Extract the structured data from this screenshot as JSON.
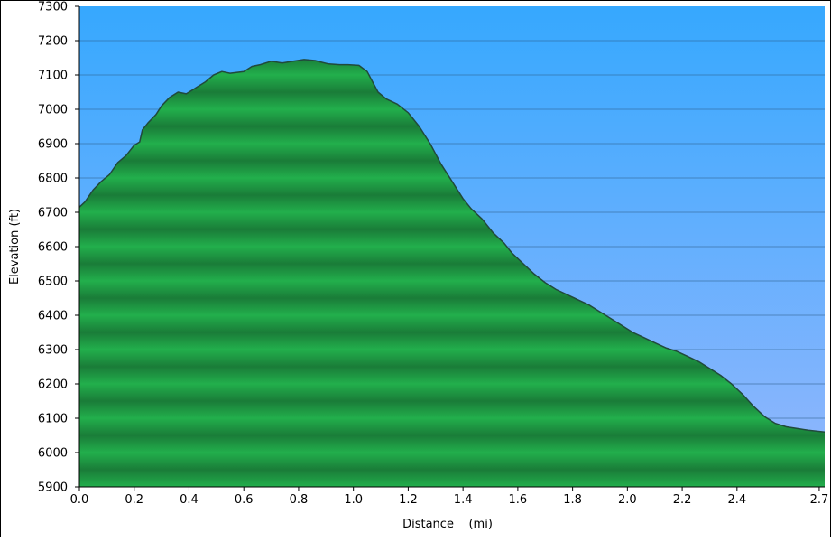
{
  "chart_data": {
    "type": "area",
    "title": "",
    "xlabel": "Distance    (mi)",
    "ylabel": "Elevation (ft)",
    "xlim": [
      0,
      2.72
    ],
    "ylim": [
      5900,
      7300
    ],
    "x_ticks": [
      0.0,
      0.2,
      0.4,
      0.6,
      0.8,
      1.0,
      1.2,
      1.4,
      1.6,
      1.8,
      2.0,
      2.2,
      2.4,
      2.7
    ],
    "x_tick_labels": [
      "0.0",
      "0.2",
      "0.4",
      "0.6",
      "0.8",
      "1.0",
      "1.2",
      "1.4",
      "1.6",
      "1.8",
      "2.0",
      "2.2",
      "2.4",
      "2.7"
    ],
    "y_ticks": [
      5900,
      6000,
      6100,
      6200,
      6300,
      6400,
      6500,
      6600,
      6700,
      6800,
      6900,
      7000,
      7100,
      7200,
      7300
    ],
    "y_tick_labels": [
      "5900",
      "6000",
      "6100",
      "6200",
      "6300",
      "6400",
      "6500",
      "6600",
      "6700",
      "6800",
      "6900",
      "7000",
      "7100",
      "7200",
      "7300"
    ],
    "grid": true,
    "legend": "none",
    "colors": {
      "sky_top": "#36A8FE",
      "sky_bottom": "#94B7FD",
      "fill_light": "#22AF4C",
      "fill_dark": "#1A7C38",
      "outline": "#214A3C",
      "gridline": "#2E5E8C",
      "axis": "#000000"
    },
    "series": [
      {
        "x": [
          0.0,
          0.02,
          0.05,
          0.08,
          0.11,
          0.14,
          0.17,
          0.2,
          0.22,
          0.23,
          0.25,
          0.28,
          0.3,
          0.33,
          0.36,
          0.39,
          0.41,
          0.43,
          0.46,
          0.49,
          0.52,
          0.55,
          0.6,
          0.63,
          0.66,
          0.7,
          0.74,
          0.78,
          0.82,
          0.86,
          0.88,
          0.91,
          0.95,
          0.98,
          1.02,
          1.05,
          1.07,
          1.09,
          1.12,
          1.16,
          1.2,
          1.24,
          1.28,
          1.32,
          1.36,
          1.4,
          1.43,
          1.47,
          1.51,
          1.55,
          1.58,
          1.62,
          1.66,
          1.7,
          1.74,
          1.78,
          1.82,
          1.86,
          1.9,
          1.94,
          1.98,
          2.02,
          2.06,
          2.1,
          2.14,
          2.18,
          2.22,
          2.26,
          2.3,
          2.34,
          2.38,
          2.42,
          2.46,
          2.5,
          2.54,
          2.58,
          2.62,
          2.66,
          2.72
        ],
        "values": [
          6715,
          6730,
          6765,
          6790,
          6810,
          6845,
          6865,
          6895,
          6905,
          6940,
          6960,
          6985,
          7010,
          7035,
          7050,
          7045,
          7055,
          7065,
          7080,
          7100,
          7110,
          7105,
          7110,
          7125,
          7130,
          7140,
          7135,
          7140,
          7145,
          7142,
          7138,
          7132,
          7130,
          7130,
          7128,
          7110,
          7080,
          7050,
          7030,
          7015,
          6990,
          6950,
          6900,
          6840,
          6790,
          6740,
          6710,
          6680,
          6640,
          6610,
          6580,
          6550,
          6520,
          6495,
          6475,
          6460,
          6445,
          6430,
          6410,
          6390,
          6370,
          6350,
          6335,
          6320,
          6305,
          6295,
          6280,
          6265,
          6245,
          6225,
          6200,
          6170,
          6135,
          6105,
          6085,
          6075,
          6070,
          6065,
          6060
        ]
      }
    ]
  }
}
